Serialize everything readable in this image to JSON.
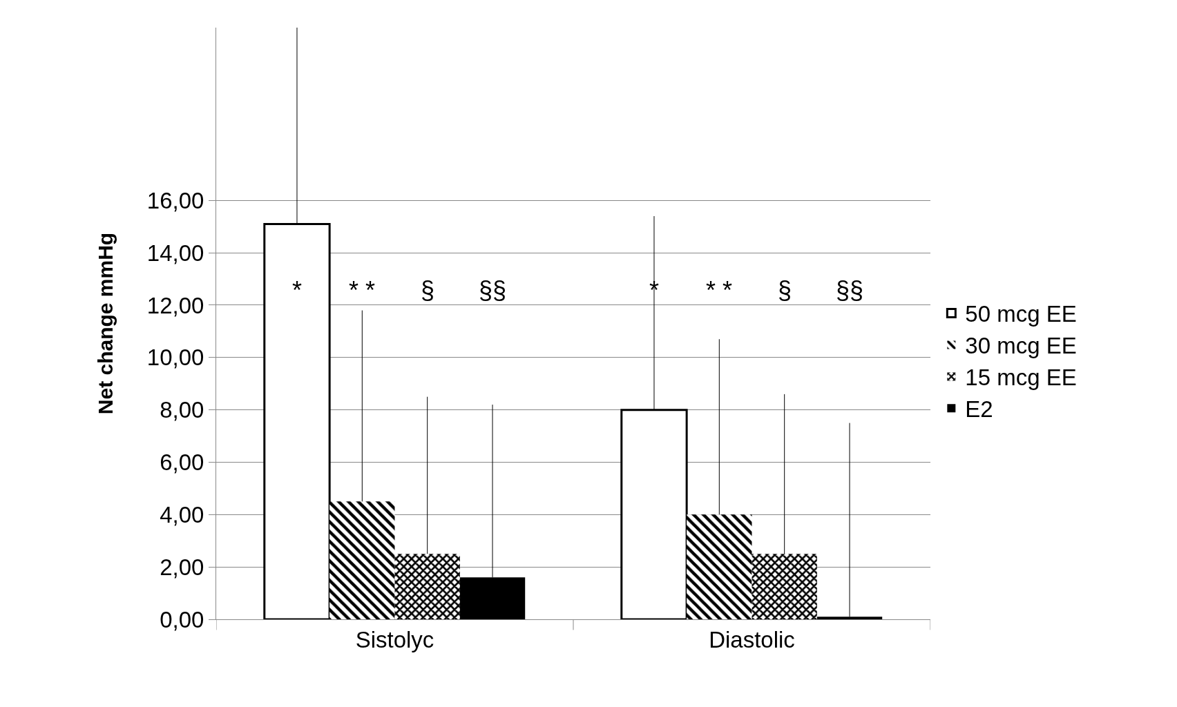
{
  "chart_data": {
    "type": "bar",
    "ylabel": "Net change mmHg",
    "categories": [
      "Sistolyc",
      "Diastolic"
    ],
    "series": [
      {
        "name": "50 mcg EE",
        "color": "#ffffff",
        "values": [
          15.1,
          8.0
        ],
        "errors": [
          [
            15.1,
            22.6
          ],
          [
            8.0,
            15.4
          ]
        ]
      },
      {
        "name": "30 mcg EE",
        "color": "#000000",
        "values": [
          4.5,
          4.0
        ],
        "errors": [
          [
            4.5,
            11.8
          ],
          [
            4.0,
            10.7
          ]
        ]
      },
      {
        "name": "15 mcg EE",
        "color": "#000000",
        "values": [
          2.5,
          2.5
        ],
        "errors": [
          [
            2.5,
            8.5
          ],
          [
            2.5,
            8.6
          ]
        ]
      },
      {
        "name": "E2",
        "color": "#000000",
        "values": [
          1.6,
          0.1
        ],
        "errors": [
          [
            1.6,
            8.2
          ],
          [
            0.1,
            7.5
          ]
        ]
      }
    ],
    "ylim": [
      0,
      22.6
    ],
    "yticks": [
      {
        "value": 0,
        "label": "0,00"
      },
      {
        "value": 2,
        "label": "2,00"
      },
      {
        "value": 4,
        "label": "4,00"
      },
      {
        "value": 6,
        "label": "6,00"
      },
      {
        "value": 8,
        "label": "8,00"
      },
      {
        "value": 10,
        "label": "10,00"
      },
      {
        "value": 12,
        "label": "12,00"
      },
      {
        "value": 14,
        "label": "14,00"
      },
      {
        "value": 16,
        "label": "16,00"
      }
    ],
    "annotations": [
      "*",
      "* *",
      "§",
      "§§",
      "*",
      "* *",
      "§",
      "§§"
    ],
    "grid": "y",
    "legend": "right"
  }
}
